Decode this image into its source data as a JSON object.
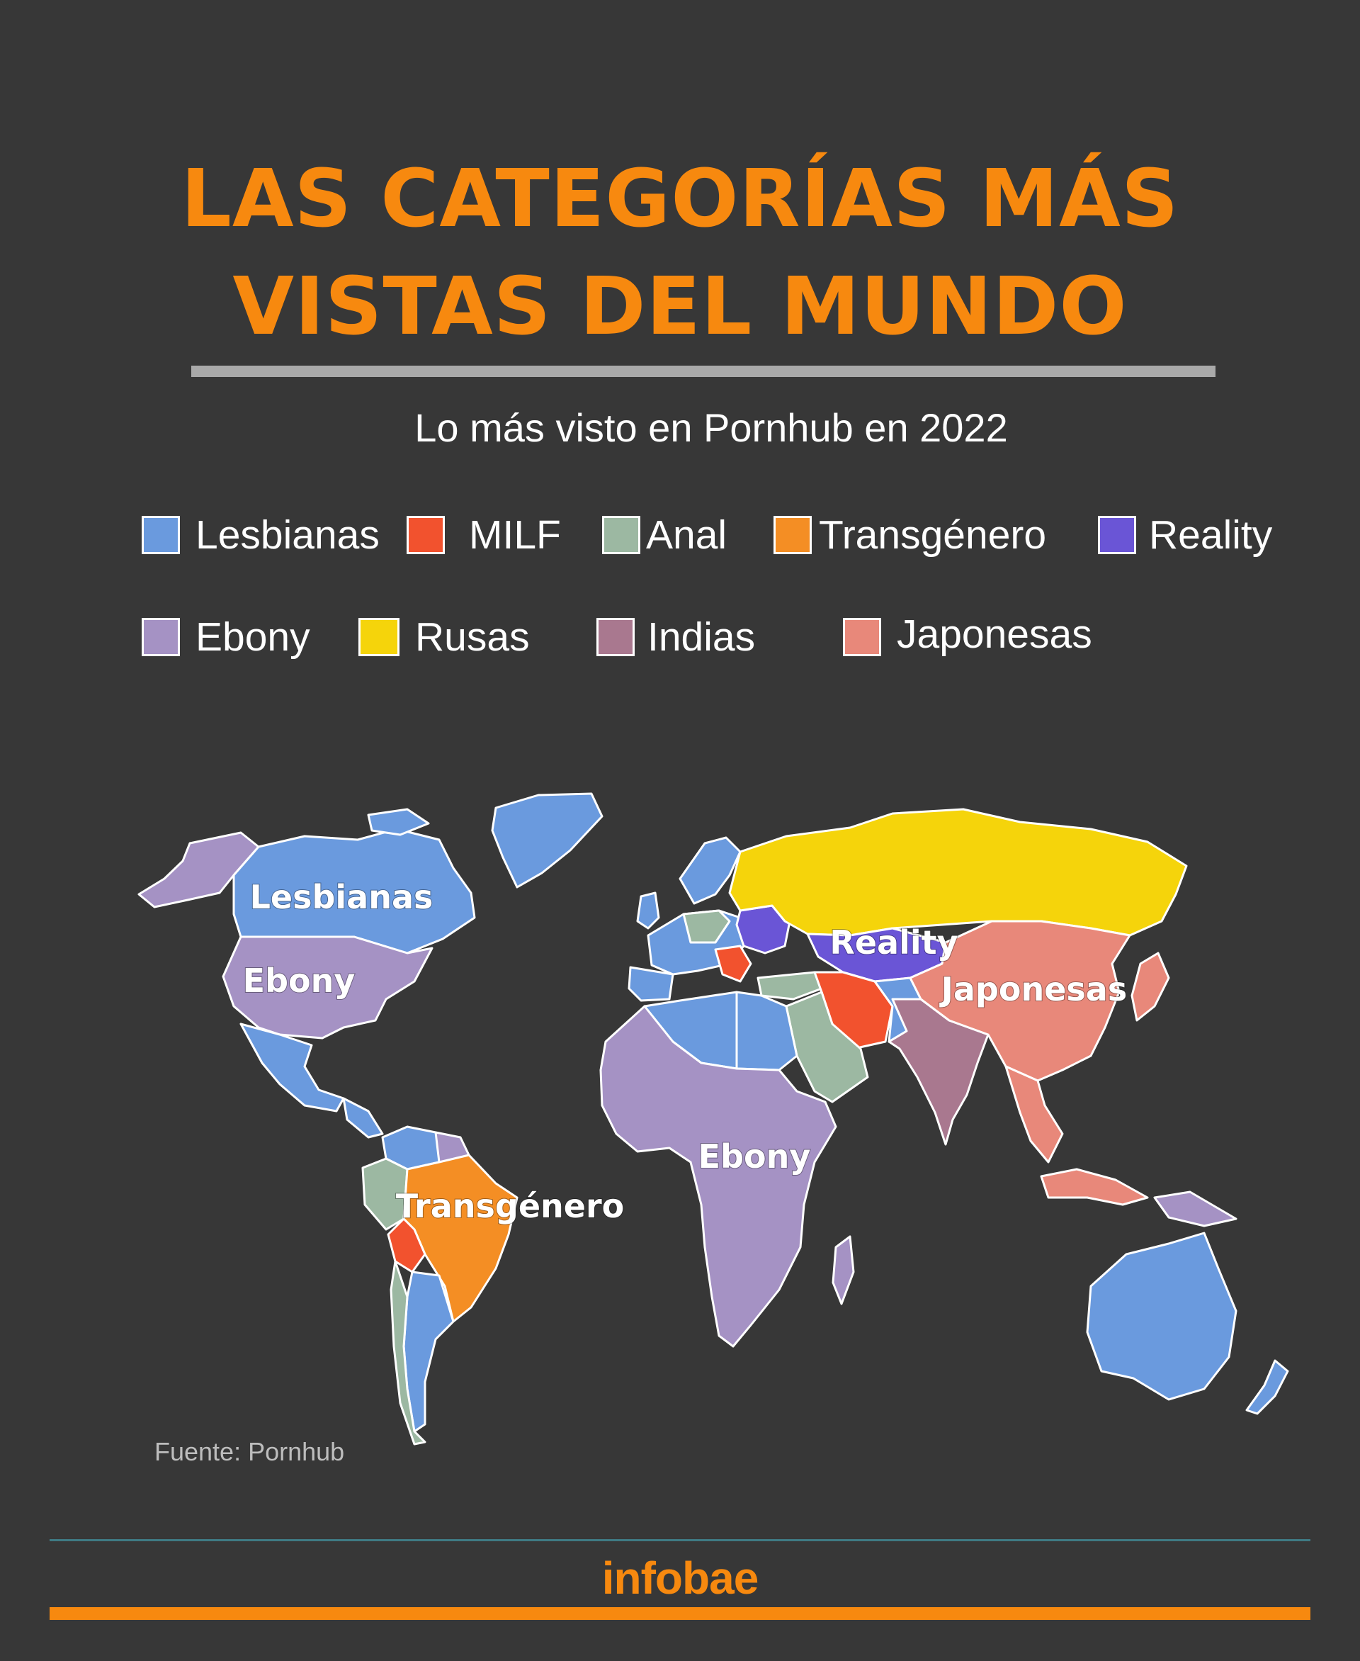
{
  "title": {
    "line1": "LAS CATEGORÍAS MÁS",
    "line2": "VISTAS DEL MUNDO"
  },
  "subtitle": "Lo más visto en Pornhub en 2022",
  "legend": [
    {
      "label": "Lesbianas",
      "color": "#6a9ade"
    },
    {
      "label": "MILF",
      "color": "#f2522e"
    },
    {
      "label": "Anal",
      "color": "#9cb8a2"
    },
    {
      "label": "Transgénero",
      "color": "#f48e24"
    },
    {
      "label": "Reality",
      "color": "#6a55d6"
    },
    {
      "label": "Ebony",
      "color": "#a592c4"
    },
    {
      "label": "Rusas",
      "color": "#f5d40b"
    },
    {
      "label": "Indias",
      "color": "#a9788f"
    },
    {
      "label": "Japonesas",
      "color": "#e8887a"
    }
  ],
  "map_labels": {
    "north_america": "Lesbianas",
    "usa": "Ebony",
    "africa": "Ebony",
    "brazil": "Transgénero",
    "central_asia": "Reality",
    "china": "Japonesas"
  },
  "regions": [
    {
      "name": "Alaska",
      "category": "Ebony"
    },
    {
      "name": "Canada",
      "category": "Lesbianas"
    },
    {
      "name": "United States",
      "category": "Ebony"
    },
    {
      "name": "Mexico",
      "category": "Lesbianas"
    },
    {
      "name": "Greenland",
      "category": "Lesbianas"
    },
    {
      "name": "Brazil",
      "category": "Transgénero"
    },
    {
      "name": "Bolivia",
      "category": "MILF"
    },
    {
      "name": "Chile",
      "category": "Anal"
    },
    {
      "name": "Russia",
      "category": "Rusas"
    },
    {
      "name": "Ukraine",
      "category": "Reality"
    },
    {
      "name": "Iran",
      "category": "MILF"
    },
    {
      "name": "Saudi Arabia",
      "category": "Anal"
    },
    {
      "name": "India",
      "category": "Indias"
    },
    {
      "name": "China",
      "category": "Japonesas"
    },
    {
      "name": "Africa",
      "category": "Ebony"
    },
    {
      "name": "Australia",
      "category": "Lesbianas"
    }
  ],
  "source": "Fuente: Pornhub",
  "brand": "infobae"
}
